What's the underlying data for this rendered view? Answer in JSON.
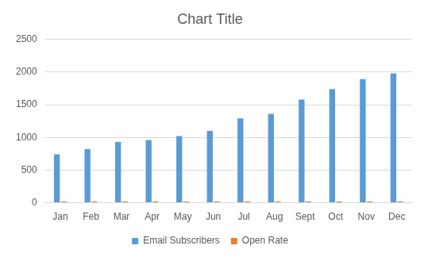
{
  "chart_data": {
    "type": "bar",
    "title": "Chart Title",
    "categories": [
      "Jan",
      "Feb",
      "Mar",
      "Apr",
      "May",
      "Jun",
      "Jul",
      "Aug",
      "Sept",
      "Oct",
      "Nov",
      "Dec"
    ],
    "series": [
      {
        "name": "Email Subscribers",
        "color": "#5b9bd5",
        "values": [
          740,
          820,
          930,
          960,
          1020,
          1100,
          1290,
          1360,
          1580,
          1740,
          1890,
          1980
        ]
      },
      {
        "name": "Open Rate",
        "color": "#ed7d31",
        "values": [
          20,
          20,
          20,
          20,
          20,
          20,
          20,
          20,
          20,
          20,
          20,
          20
        ]
      }
    ],
    "ylim": [
      0,
      2500
    ],
    "yticks": [
      0,
      500,
      1000,
      1500,
      2000,
      2500
    ],
    "grid": true,
    "legend": "bottom"
  }
}
